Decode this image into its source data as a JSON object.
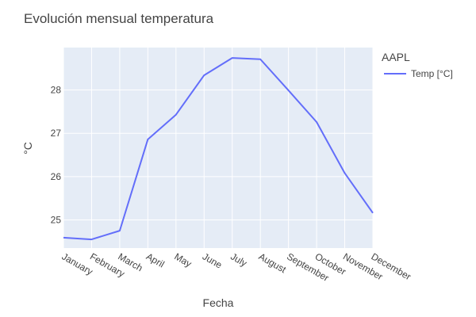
{
  "chart_data": {
    "type": "line",
    "title": "Evolución mensual temperatura",
    "xlabel": "Fecha",
    "ylabel": "°C",
    "categories": [
      "January",
      "February",
      "March",
      "April",
      "May",
      "June",
      "July",
      "August",
      "September",
      "October",
      "November",
      "December"
    ],
    "series": [
      {
        "name": "Temp [°C]",
        "values": [
          24.59,
          24.55,
          24.75,
          26.86,
          27.43,
          28.34,
          28.74,
          28.71,
          27.99,
          27.26,
          26.08,
          25.16
        ],
        "color": "#636efa"
      }
    ],
    "ylim": [
      24.35,
      28.98
    ],
    "yticks": [
      25,
      26,
      27,
      28
    ],
    "grid": true,
    "legend": {
      "title": "AAPL",
      "position": "top-right"
    },
    "colors": {
      "plot_bg": "#e5ecf6",
      "grid": "#ffffff",
      "text": "#444444"
    }
  }
}
